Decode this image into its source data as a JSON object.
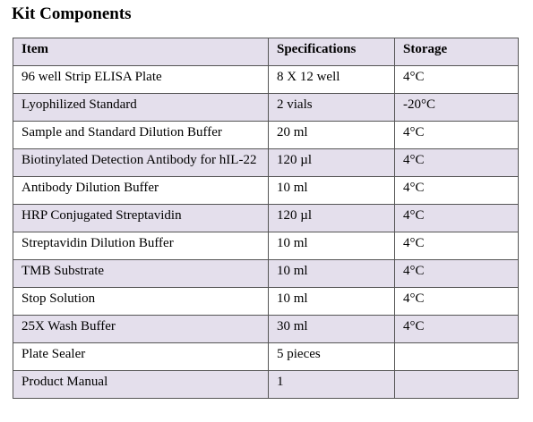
{
  "title": "Kit Components",
  "table": {
    "header": [
      "Item",
      "Specifications",
      "Storage"
    ],
    "rows": [
      [
        "96 well Strip ELISA Plate",
        "8 X 12 well",
        "4°C"
      ],
      [
        "Lyophilized Standard",
        "2 vials",
        "-20°C"
      ],
      [
        "Sample and Standard Dilution Buffer",
        "20 ml",
        "4°C"
      ],
      [
        "Biotinylated Detection Antibody  for hIL-22",
        "120 µl",
        "4°C"
      ],
      [
        "Antibody Dilution Buffer",
        "10 ml",
        "4°C"
      ],
      [
        "HRP Conjugated Streptavidin",
        "120 µl",
        "4°C"
      ],
      [
        "Streptavidin Dilution Buffer",
        "10 ml",
        "4°C"
      ],
      [
        "TMB Substrate",
        "10 ml",
        "4°C"
      ],
      [
        "Stop Solution",
        "10 ml",
        "4°C"
      ],
      [
        "25X Wash Buffer",
        "30 ml",
        "4°C"
      ],
      [
        "Plate Sealer",
        "5 pieces"
      ],
      [
        "Product Manual",
        "1"
      ]
    ]
  }
}
